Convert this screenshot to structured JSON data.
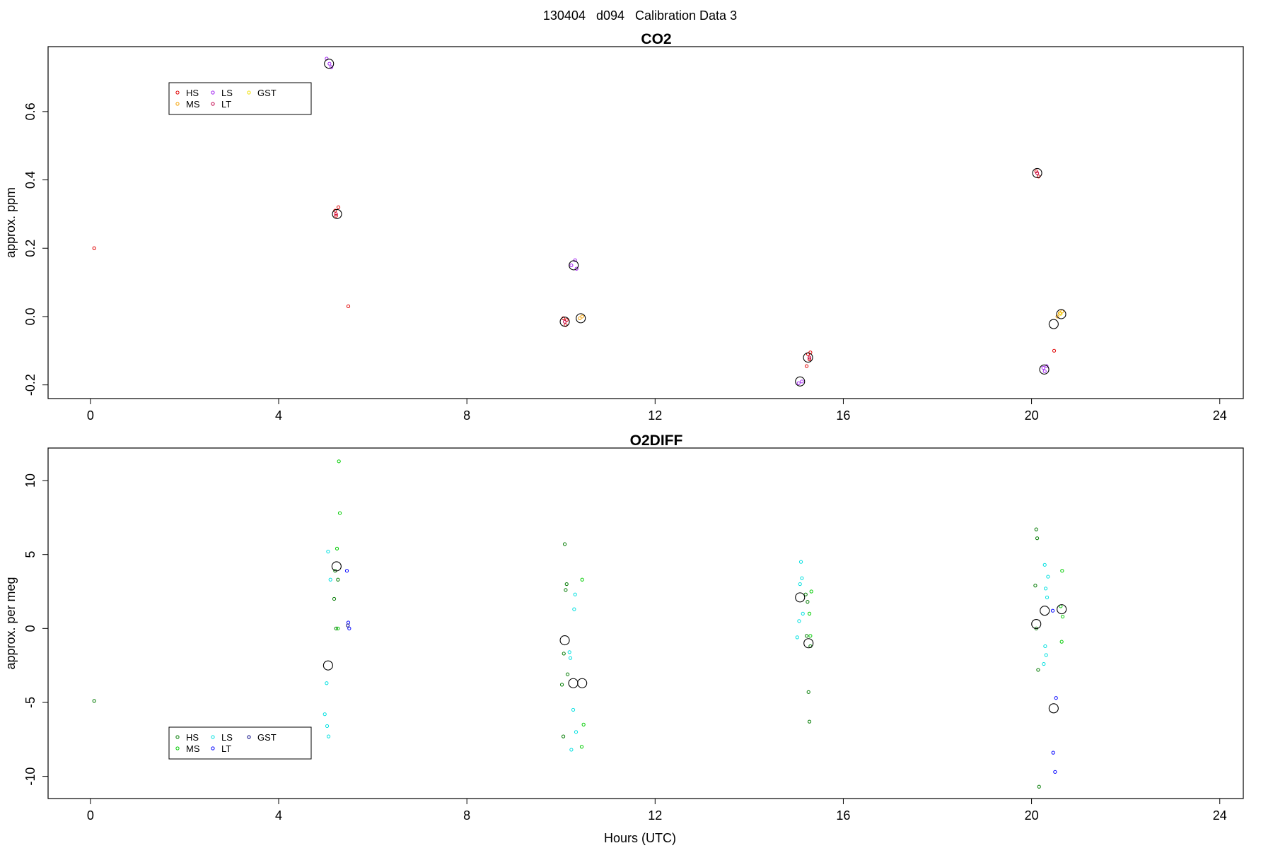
{
  "title": "130404   d094   Calibration Data 3",
  "chart_data": [
    {
      "type": "scatter",
      "title": "CO2",
      "xlabel": "",
      "ylabel": "approx. ppm",
      "xlim": [
        -0.9,
        24.5
      ],
      "ylim": [
        -0.24,
        0.79
      ],
      "xticks": [
        "0",
        "4",
        "8",
        "12",
        "16",
        "20",
        "24"
      ],
      "yticks": [
        "-0.2",
        "0.0",
        "0.2",
        "0.4",
        "0.6"
      ],
      "legend": {
        "position": "top-left",
        "entries": [
          {
            "label": "HS",
            "color": "#e00000"
          },
          {
            "label": "MS",
            "color": "#f5a000"
          },
          {
            "label": "LS",
            "color": "#a020f0"
          },
          {
            "label": "LT",
            "color": "#c0004a"
          },
          {
            "label": "GST",
            "color": "#f0e000"
          }
        ]
      },
      "series": [
        {
          "name": "HS",
          "color": "#e00000",
          "points": [
            [
              0.08,
              0.2
            ],
            [
              5.2,
              0.31
            ],
            [
              5.27,
              0.32
            ],
            [
              5.22,
              0.295
            ],
            [
              5.48,
              0.03
            ],
            [
              10.05,
              -0.005
            ],
            [
              10.1,
              -0.025
            ],
            [
              10.12,
              -0.01
            ],
            [
              15.25,
              -0.11
            ],
            [
              15.3,
              -0.105
            ],
            [
              15.22,
              -0.145
            ],
            [
              15.28,
              -0.125
            ],
            [
              20.1,
              0.425
            ],
            [
              20.15,
              0.41
            ],
            [
              20.48,
              -0.1
            ]
          ]
        },
        {
          "name": "MS",
          "color": "#f5a000",
          "points": [
            [
              10.4,
              -0.005
            ],
            [
              10.45,
              0.0
            ],
            [
              20.6,
              0.01
            ],
            [
              20.65,
              0.015
            ],
            [
              20.55,
              0.0
            ]
          ]
        },
        {
          "name": "LS",
          "color": "#a020f0",
          "points": [
            [
              5.02,
              0.755
            ],
            [
              5.08,
              0.74
            ],
            [
              5.12,
              0.73
            ],
            [
              10.22,
              0.15
            ],
            [
              10.3,
              0.165
            ],
            [
              10.33,
              0.14
            ],
            [
              15.05,
              -0.195
            ],
            [
              15.12,
              -0.19
            ],
            [
              20.25,
              -0.15
            ],
            [
              20.32,
              -0.145
            ],
            [
              20.28,
              -0.16
            ]
          ]
        },
        {
          "name": "LT",
          "color": "#c0004a",
          "points": [
            [
              5.22,
              0.3
            ],
            [
              10.08,
              -0.015
            ],
            [
              15.28,
              -0.12
            ],
            [
              20.12,
              0.42
            ]
          ]
        },
        {
          "name": "GST",
          "color": "#f0e000",
          "points": [
            [
              20.62,
              0.008
            ]
          ]
        },
        {
          "name": "",
          "color": "#000000",
          "marker": "large-circle",
          "points": [
            [
              5.07,
              0.74
            ],
            [
              5.24,
              0.3
            ],
            [
              10.08,
              -0.015
            ],
            [
              10.27,
              0.15
            ],
            [
              10.42,
              -0.005
            ],
            [
              15.08,
              -0.19
            ],
            [
              15.25,
              -0.12
            ],
            [
              20.12,
              0.42
            ],
            [
              20.27,
              -0.155
            ],
            [
              20.47,
              -0.022
            ],
            [
              20.63,
              0.007
            ]
          ]
        }
      ]
    },
    {
      "type": "scatter",
      "title": "O2DIFF",
      "xlabel": "Hours (UTC)",
      "ylabel": "approx. per meg",
      "xlim": [
        -0.9,
        24.5
      ],
      "ylim": [
        -11.5,
        12.2
      ],
      "xticks": [
        "0",
        "4",
        "8",
        "12",
        "16",
        "20",
        "24"
      ],
      "yticks": [
        "-10",
        "-5",
        "0",
        "5",
        "10"
      ],
      "legend": {
        "position": "bottom-left",
        "entries": [
          {
            "label": "HS",
            "color": "#007a00"
          },
          {
            "label": "MS",
            "color": "#00cc00"
          },
          {
            "label": "LS",
            "color": "#00e0e0"
          },
          {
            "label": "LT",
            "color": "#0000ff"
          },
          {
            "label": "GST",
            "color": "#000080"
          }
        ]
      },
      "series": [
        {
          "name": "HS",
          "color": "#007a00",
          "points": [
            [
              0.08,
              -4.9
            ],
            [
              5.2,
              3.9
            ],
            [
              5.18,
              2.0
            ],
            [
              5.22,
              0.0
            ],
            [
              5.26,
              3.3
            ],
            [
              10.08,
              5.7
            ],
            [
              10.1,
              2.6
            ],
            [
              10.12,
              3.0
            ],
            [
              10.06,
              -1.7
            ],
            [
              10.14,
              -3.1
            ],
            [
              10.02,
              -3.8
            ],
            [
              10.05,
              -7.3
            ],
            [
              15.2,
              2.3
            ],
            [
              15.24,
              1.8
            ],
            [
              15.22,
              -0.5
            ],
            [
              15.26,
              -4.3
            ],
            [
              15.28,
              -6.3
            ],
            [
              15.3,
              -1.2
            ],
            [
              20.1,
              6.7
            ],
            [
              20.12,
              6.1
            ],
            [
              20.08,
              2.9
            ],
            [
              20.1,
              0.0
            ],
            [
              20.14,
              -2.8
            ],
            [
              20.16,
              -10.7
            ]
          ]
        },
        {
          "name": "MS",
          "color": "#00cc00",
          "points": [
            [
              5.28,
              11.3
            ],
            [
              5.3,
              7.8
            ],
            [
              5.24,
              5.4
            ],
            [
              5.26,
              0.0
            ],
            [
              10.45,
              3.3
            ],
            [
              10.48,
              -6.5
            ],
            [
              10.44,
              -8.0
            ],
            [
              15.32,
              2.5
            ],
            [
              15.28,
              1.0
            ],
            [
              15.3,
              -0.5
            ],
            [
              20.65,
              3.9
            ],
            [
              20.62,
              1.5
            ],
            [
              20.66,
              0.8
            ],
            [
              20.64,
              -0.9
            ]
          ]
        },
        {
          "name": "LS",
          "color": "#00e0e0",
          "points": [
            [
              5.05,
              5.2
            ],
            [
              5.1,
              3.3
            ],
            [
              5.02,
              -3.7
            ],
            [
              4.98,
              -5.8
            ],
            [
              5.03,
              -6.6
            ],
            [
              5.06,
              -7.3
            ],
            [
              10.3,
              2.3
            ],
            [
              10.28,
              1.3
            ],
            [
              10.2,
              -2.0
            ],
            [
              10.18,
              -1.6
            ],
            [
              10.26,
              -5.5
            ],
            [
              10.32,
              -7.0
            ],
            [
              10.22,
              -8.2
            ],
            [
              15.1,
              4.5
            ],
            [
              15.12,
              3.4
            ],
            [
              15.08,
              3.0
            ],
            [
              15.14,
              1.0
            ],
            [
              15.06,
              0.5
            ],
            [
              15.02,
              -0.6
            ],
            [
              20.28,
              4.3
            ],
            [
              20.35,
              3.5
            ],
            [
              20.3,
              2.7
            ],
            [
              20.33,
              2.1
            ],
            [
              20.29,
              -1.2
            ],
            [
              20.31,
              -1.8
            ],
            [
              20.26,
              -2.4
            ]
          ]
        },
        {
          "name": "LT",
          "color": "#0000ff",
          "points": [
            [
              5.45,
              3.9
            ],
            [
              5.48,
              0.4
            ],
            [
              5.5,
              0.0
            ],
            [
              20.45,
              1.2
            ],
            [
              20.52,
              -4.7
            ],
            [
              20.46,
              -8.4
            ],
            [
              20.5,
              -9.7
            ]
          ]
        },
        {
          "name": "GST",
          "color": "#000080",
          "points": [
            [
              5.47,
              0.2
            ]
          ]
        },
        {
          "name": "",
          "color": "#000000",
          "marker": "large-circle",
          "points": [
            [
              5.05,
              -2.5
            ],
            [
              5.23,
              4.2
            ],
            [
              10.08,
              -0.8
            ],
            [
              10.26,
              -3.7
            ],
            [
              10.45,
              -3.7
            ],
            [
              15.08,
              2.1
            ],
            [
              15.26,
              -1.0
            ],
            [
              20.1,
              0.3
            ],
            [
              20.28,
              1.2
            ],
            [
              20.47,
              -5.4
            ],
            [
              20.64,
              1.3
            ]
          ]
        }
      ]
    }
  ]
}
